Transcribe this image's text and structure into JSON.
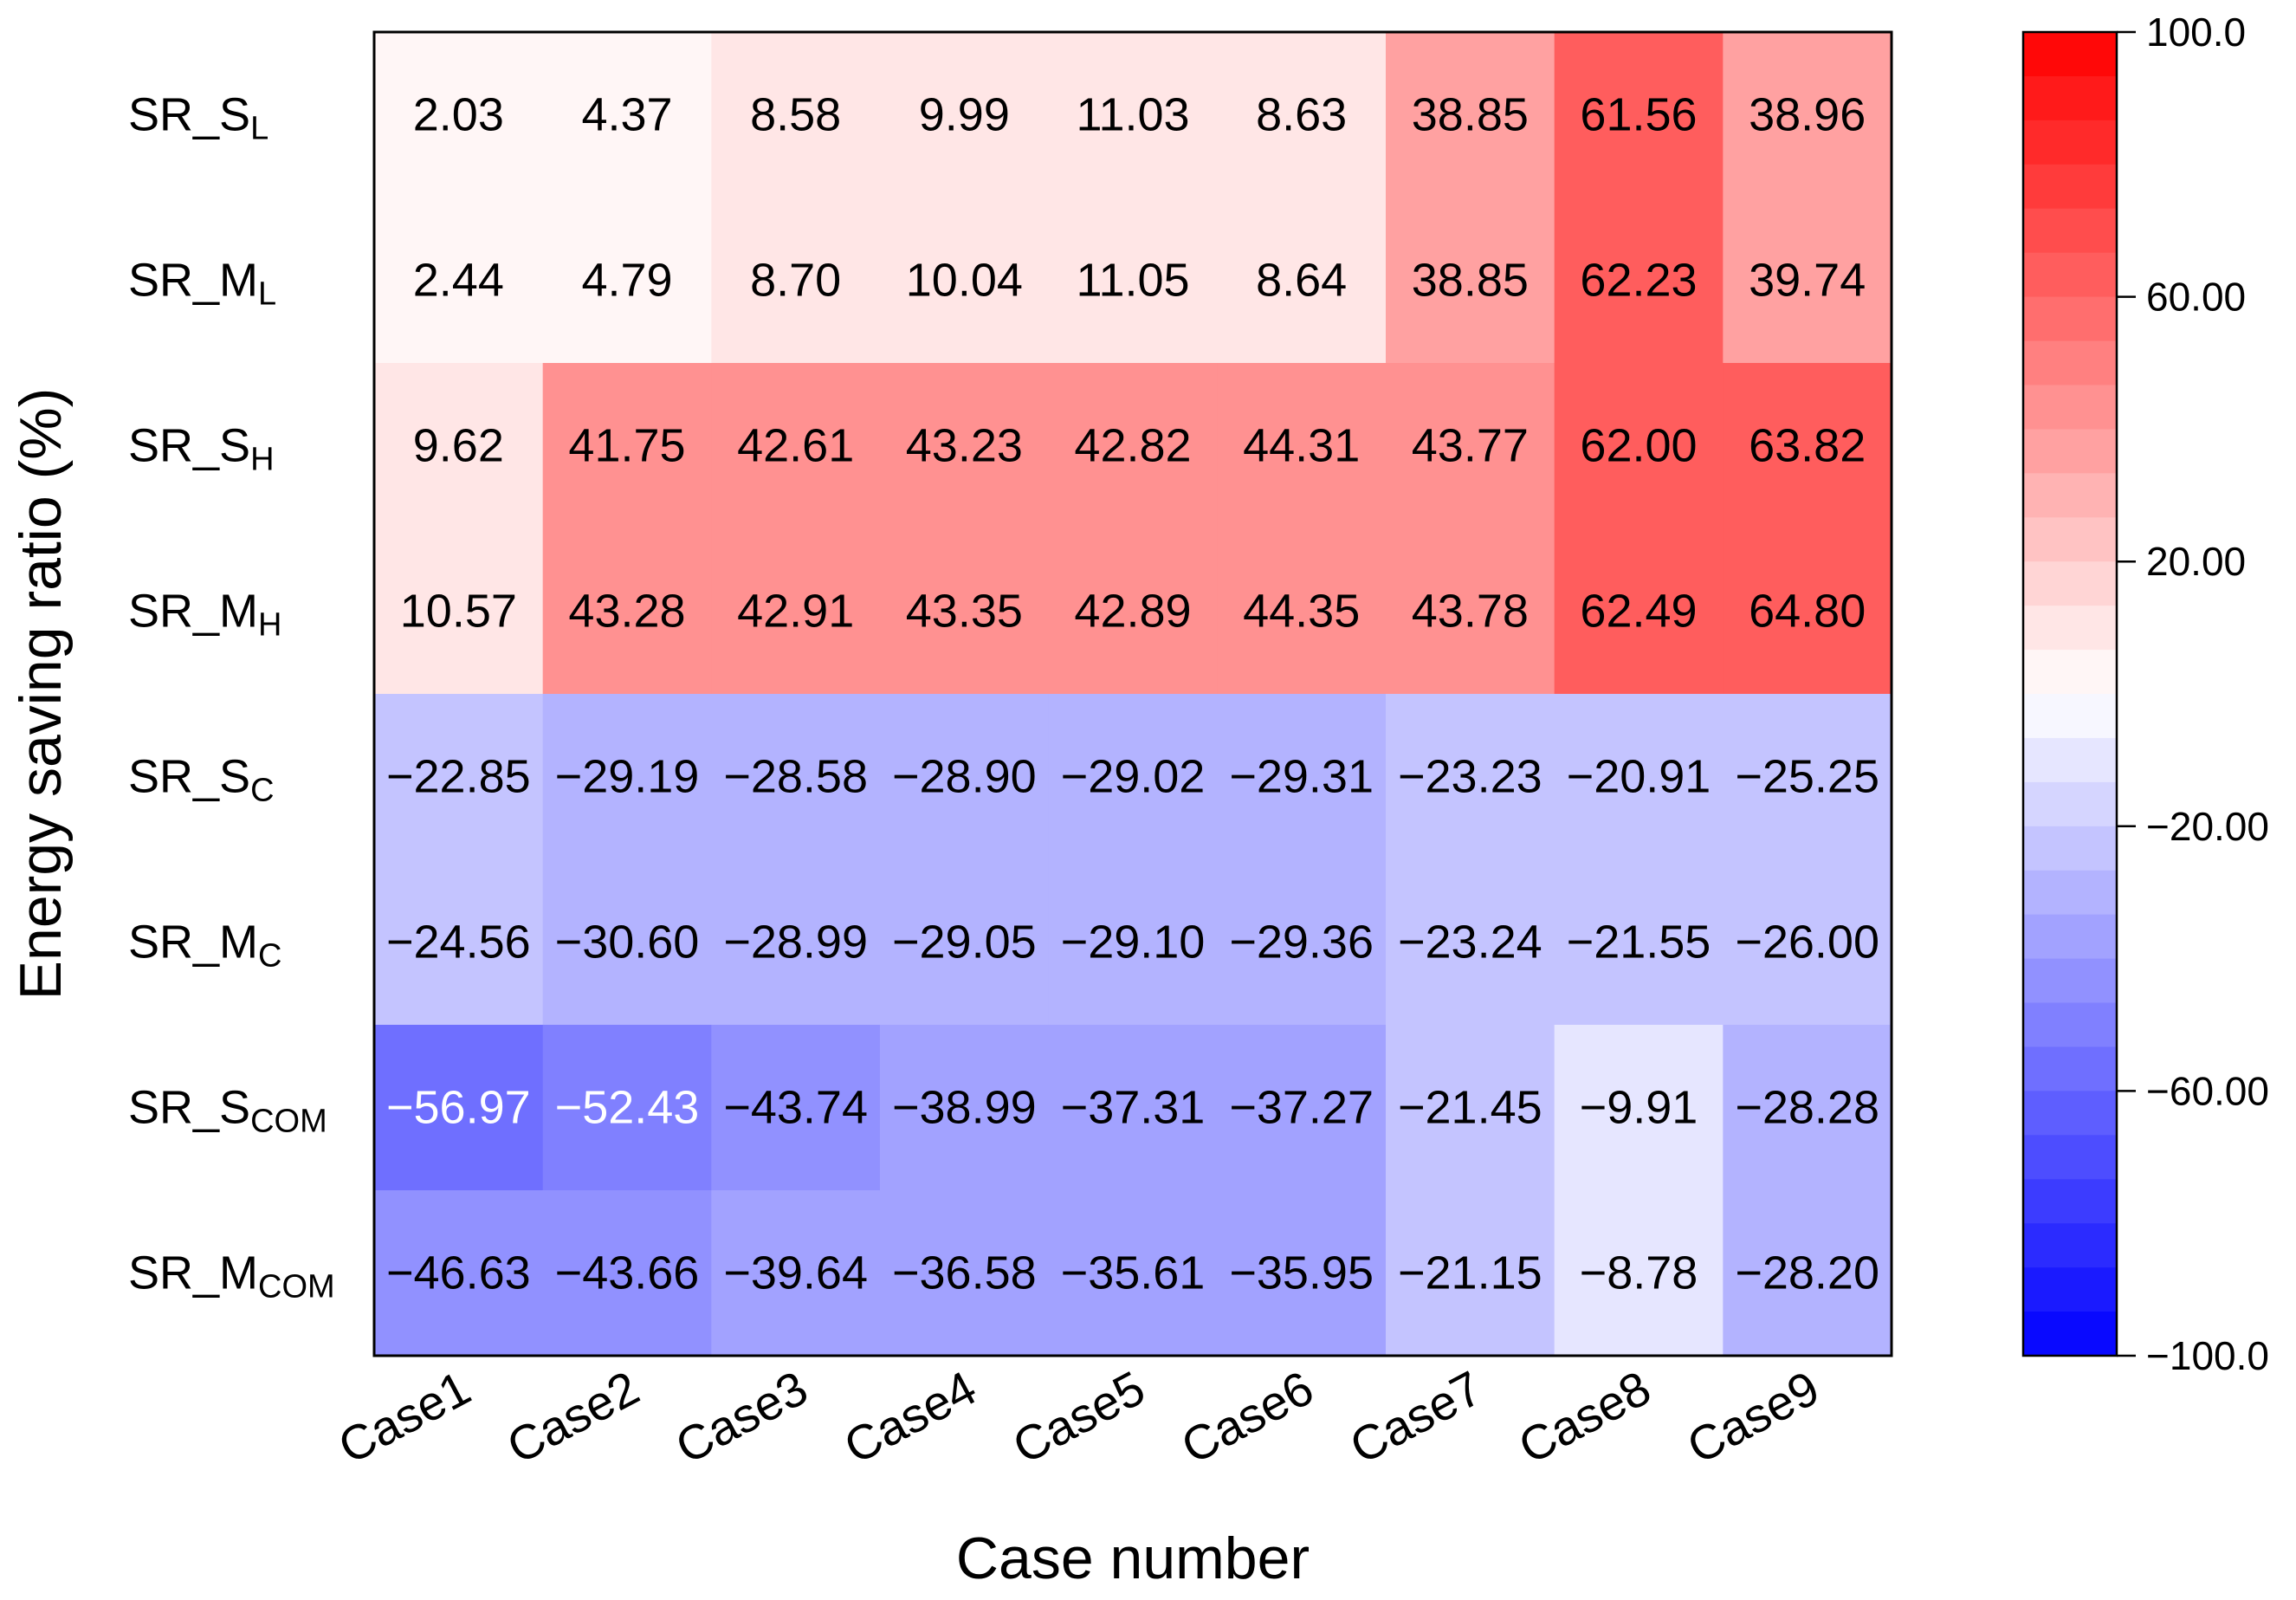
{
  "chart_data": {
    "type": "heatmap",
    "title": "",
    "xlabel": "Case number",
    "ylabel": "Energy saving ratio (%)",
    "x_categories": [
      "Case1",
      "Case2",
      "Case3",
      "Case4",
      "Case5",
      "Case6",
      "Case7",
      "Case8",
      "Case9"
    ],
    "y_categories": [
      {
        "main": "SR_S",
        "sub": "L"
      },
      {
        "main": "SR_M",
        "sub": "L"
      },
      {
        "main": "SR_S",
        "sub": "H"
      },
      {
        "main": "SR_M",
        "sub": "H"
      },
      {
        "main": "SR_S",
        "sub": "C"
      },
      {
        "main": "SR_M",
        "sub": "C"
      },
      {
        "main": "SR_S",
        "sub": "COM"
      },
      {
        "main": "SR_M",
        "sub": "COM"
      }
    ],
    "values": [
      [
        2.03,
        4.37,
        8.58,
        9.99,
        11.03,
        8.63,
        38.85,
        61.56,
        38.96
      ],
      [
        2.44,
        4.79,
        8.7,
        10.04,
        11.05,
        8.64,
        38.85,
        62.23,
        39.74
      ],
      [
        9.62,
        41.75,
        42.61,
        43.23,
        42.82,
        44.31,
        43.77,
        62.0,
        63.82
      ],
      [
        10.57,
        43.28,
        42.91,
        43.35,
        42.89,
        44.35,
        43.78,
        62.49,
        64.8
      ],
      [
        -22.85,
        -29.19,
        -28.58,
        -28.9,
        -29.02,
        -29.31,
        -23.23,
        -20.91,
        -25.25
      ],
      [
        -24.56,
        -30.6,
        -28.99,
        -29.05,
        -29.1,
        -29.36,
        -23.24,
        -21.55,
        -26.0
      ],
      [
        -56.97,
        -52.43,
        -43.74,
        -38.99,
        -37.31,
        -37.27,
        -21.45,
        -9.91,
        -28.28
      ],
      [
        -46.63,
        -43.66,
        -39.64,
        -36.58,
        -35.61,
        -35.95,
        -21.15,
        -8.78,
        -28.2
      ]
    ],
    "value_labels": [
      [
        "2.03",
        "4.37",
        "8.58",
        "9.99",
        "11.03",
        "8.63",
        "38.85",
        "61.56",
        "38.96"
      ],
      [
        "2.44",
        "4.79",
        "8.70",
        "10.04",
        "11.05",
        "8.64",
        "38.85",
        "62.23",
        "39.74"
      ],
      [
        "9.62",
        "41.75",
        "42.61",
        "43.23",
        "42.82",
        "44.31",
        "43.77",
        "62.00",
        "63.82"
      ],
      [
        "10.57",
        "43.28",
        "42.91",
        "43.35",
        "42.89",
        "44.35",
        "43.78",
        "62.49",
        "64.80"
      ],
      [
        "−22.85",
        "−29.19",
        "−28.58",
        "−28.90",
        "−29.02",
        "−29.31",
        "−23.23",
        "−20.91",
        "−25.25"
      ],
      [
        "−24.56",
        "−30.60",
        "−28.99",
        "−29.05",
        "−29.10",
        "−29.36",
        "−23.24",
        "−21.55",
        "−26.00"
      ],
      [
        "−56.97",
        "−52.43",
        "−43.74",
        "−38.99",
        "−37.31",
        "−37.27",
        "−21.45",
        "−9.91",
        "−28.28"
      ],
      [
        "−46.63",
        "−43.66",
        "−39.64",
        "−36.58",
        "−35.61",
        "−35.95",
        "−21.15",
        "−8.78",
        "−28.20"
      ]
    ],
    "colorbar": {
      "range": [
        -100,
        100
      ],
      "steps": 30,
      "ticks": [
        100,
        60,
        20,
        -20,
        -60,
        -100
      ],
      "tick_labels": [
        "100.0",
        "60.00",
        "20.00",
        "−20.00",
        "−60.00",
        "−100.0"
      ],
      "low_color": "#0000ff",
      "mid_color": "#ffffff",
      "high_color": "#ff0000",
      "placement": "right"
    },
    "text_color_dark": "#000000",
    "text_color_light": "#ffffff"
  }
}
